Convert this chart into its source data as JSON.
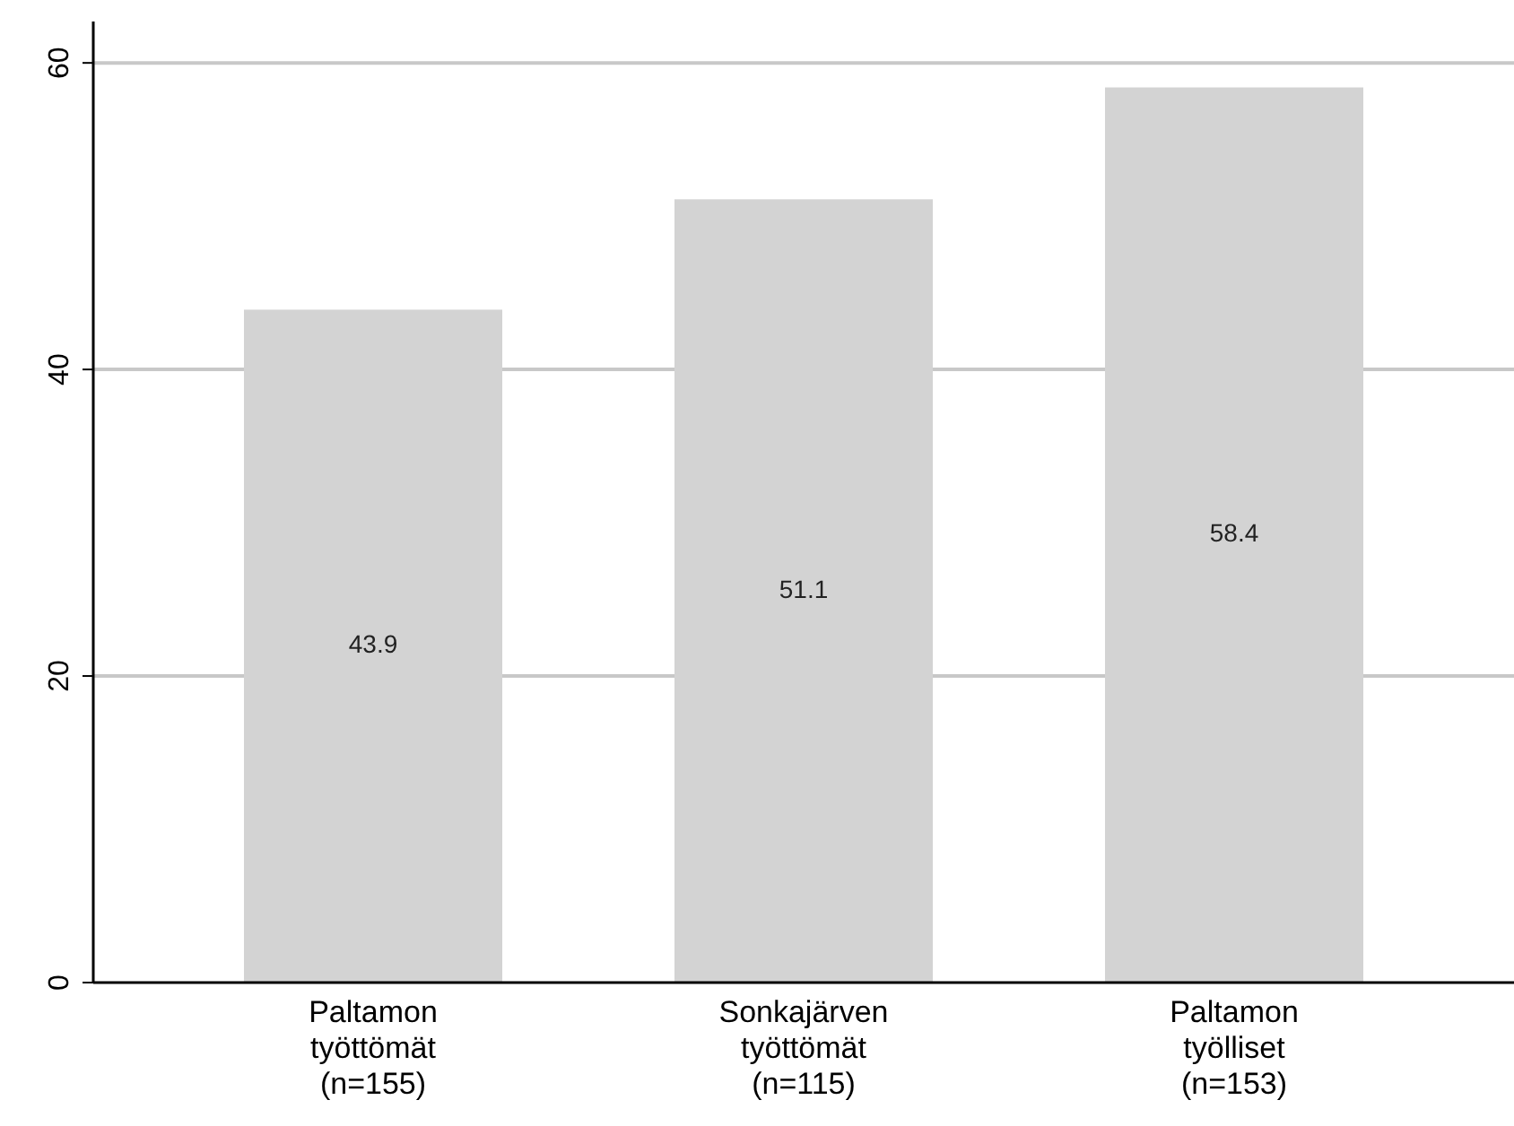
{
  "chart_data": {
    "type": "bar",
    "categories": [
      "Paltamon\ntyöttömät\n(n=155)",
      "Sonkajärven\ntyöttömät\n(n=115)",
      "Paltamon\ntyölliset\n(n=153)"
    ],
    "values": [
      43.9,
      51.1,
      58.4
    ],
    "color": "#d3d3d3",
    "ylim": [
      0,
      62.7
    ],
    "yticks": [
      0,
      20,
      40,
      60
    ],
    "grid": "y",
    "data_labels": true
  }
}
